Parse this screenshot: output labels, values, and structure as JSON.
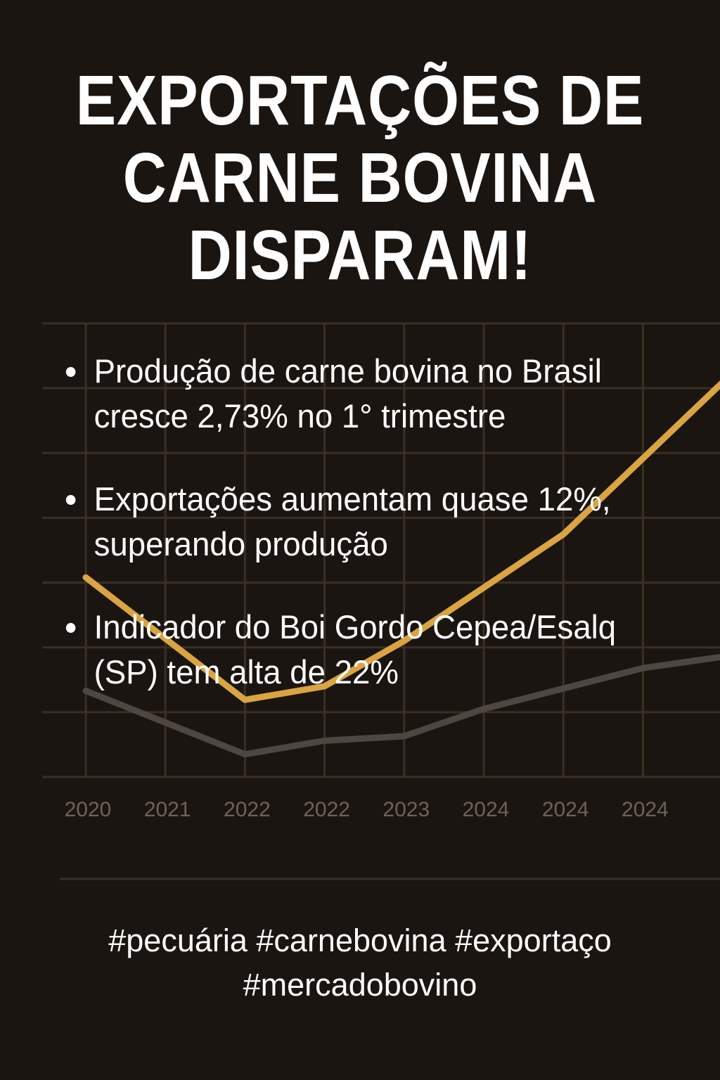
{
  "title": {
    "lines": [
      "EXPORTAÇÕES DE",
      "CARNE BOVINA",
      "DISPARAM!"
    ]
  },
  "bullets": [
    {
      "lines": [
        "Produção de carne bovina no Brasil",
        "cresce 2,73% no 1° trimestre"
      ]
    },
    {
      "lines": [
        "Exportações aumentam quase 12%,",
        "superando produção"
      ]
    },
    {
      "lines": [
        "Indicador do Boi Gordo Cepea/Esalq",
        "(SP) tem alta de 22%"
      ]
    }
  ],
  "hashtags": {
    "lines": [
      "#pecuária #carnebovina #exportaço",
      "#mercadobovino"
    ]
  },
  "colors": {
    "background": "#1b1511",
    "grid": "#3a2f24",
    "gold_line": "#d9a441",
    "gray_line": "#4e4640",
    "tick_text": "#6e6356"
  },
  "chart_data": {
    "type": "line",
    "title": "",
    "xlabel": "",
    "ylabel": "",
    "categories": [
      "2020",
      "2021",
      "2022",
      "2022",
      "2023",
      "2024",
      "2024",
      "2024"
    ],
    "ylim": [
      0,
      100
    ],
    "grid": true,
    "series": [
      {
        "color": "#d9a441",
        "points": [
          [
            0,
            44
          ],
          [
            2,
            17
          ],
          [
            3,
            20
          ],
          [
            4,
            30
          ],
          [
            6,
            53.5
          ],
          [
            8,
            87
          ]
        ]
      },
      {
        "color": "#4e4640",
        "points": [
          [
            0,
            19
          ],
          [
            2,
            5
          ],
          [
            3,
            8
          ],
          [
            4,
            9
          ],
          [
            5,
            15
          ],
          [
            7,
            24
          ],
          [
            8,
            26.5
          ]
        ]
      }
    ]
  }
}
